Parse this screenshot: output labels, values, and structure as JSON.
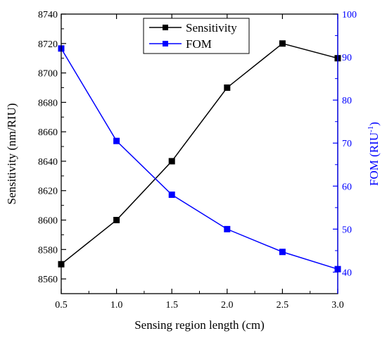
{
  "chart_data": {
    "type": "line",
    "xlabel": "Sensing region length (cm)",
    "ylabel_left": "Sensitivity (nm/RIU)",
    "ylabel_right_main": "FOM (RIU",
    "ylabel_right_sup": "-1",
    "ylabel_right_end": ")",
    "x": [
      0.5,
      1.0,
      1.5,
      2.0,
      2.5,
      3.0
    ],
    "xlim": [
      0.5,
      3.0
    ],
    "xticks": [
      "0.5",
      "1.0",
      "1.5",
      "2.0",
      "2.5",
      "3.0"
    ],
    "ylim_left": [
      8550,
      8740
    ],
    "yticks_left": [
      "8560",
      "8580",
      "8600",
      "8620",
      "8640",
      "8660",
      "8680",
      "8700",
      "8720",
      "8740"
    ],
    "ylim_right": [
      35,
      100
    ],
    "yticks_right": [
      "40",
      "50",
      "60",
      "70",
      "80",
      "90",
      "100"
    ],
    "series": [
      {
        "name": "Sensitivity",
        "axis": "left",
        "color": "#000000",
        "marker": "square",
        "values": [
          8570,
          8600,
          8640,
          8690,
          8720,
          8710
        ]
      },
      {
        "name": "FOM",
        "axis": "right",
        "color": "#0000ff",
        "marker": "square",
        "values": [
          92,
          70.5,
          58,
          50,
          44.7,
          40.7
        ]
      }
    ],
    "legend": {
      "position": "top-center"
    },
    "grid": false
  }
}
